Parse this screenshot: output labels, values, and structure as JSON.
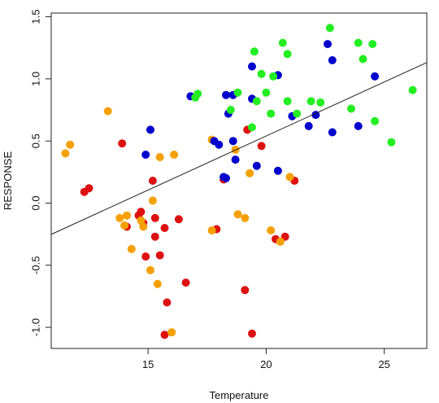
{
  "chart_data": {
    "type": "scatter",
    "xlabel": "Temperature",
    "ylabel": "RESPONSE",
    "xlim": [
      10.9,
      26.8
    ],
    "ylim": [
      -1.17,
      1.53
    ],
    "x_ticks": [
      15,
      20,
      25
    ],
    "y_ticks": [
      -1.0,
      -0.5,
      0.0,
      0.5,
      1.0,
      1.5
    ],
    "x_tick_labels": [
      "15",
      "20",
      "25"
    ],
    "y_tick_labels": [
      "-1.0",
      "-0.5",
      "0.0",
      "0.5",
      "1.0",
      "1.5"
    ],
    "grid": false,
    "legend": "none",
    "trend_line": {
      "intercept": -1.2,
      "slope": 0.087
    },
    "colors": {
      "red": "#dd1111",
      "orange": "#f5a000",
      "blue": "#0000cc",
      "green": "#22ee22",
      "line": "#222222"
    },
    "series": [
      {
        "color": "#dd1111",
        "points": [
          [
            12.3,
            0.09
          ],
          [
            12.5,
            0.12
          ],
          [
            13.9,
            0.48
          ],
          [
            14.1,
            -0.19
          ],
          [
            14.6,
            -0.1
          ],
          [
            14.7,
            -0.07
          ],
          [
            14.8,
            -0.16
          ],
          [
            14.9,
            -0.43
          ],
          [
            15.2,
            0.18
          ],
          [
            15.3,
            -0.12
          ],
          [
            15.3,
            -0.27
          ],
          [
            15.5,
            -0.42
          ],
          [
            15.7,
            -0.2
          ],
          [
            15.7,
            -1.06
          ],
          [
            15.8,
            -0.8
          ],
          [
            16.3,
            -0.13
          ],
          [
            16.6,
            -0.64
          ],
          [
            17.9,
            -0.21
          ],
          [
            18.2,
            0.19
          ],
          [
            19.1,
            -0.7
          ],
          [
            19.2,
            0.59
          ],
          [
            19.4,
            -1.05
          ],
          [
            19.8,
            0.46
          ],
          [
            20.4,
            -0.29
          ],
          [
            20.8,
            -0.27
          ],
          [
            21.2,
            0.18
          ]
        ]
      },
      {
        "color": "#f5a000",
        "points": [
          [
            11.5,
            0.4
          ],
          [
            11.7,
            0.47
          ],
          [
            13.3,
            0.74
          ],
          [
            13.8,
            -0.12
          ],
          [
            14.0,
            -0.18
          ],
          [
            14.1,
            -0.1
          ],
          [
            14.3,
            -0.37
          ],
          [
            14.7,
            -0.14
          ],
          [
            14.8,
            -0.19
          ],
          [
            15.1,
            -0.54
          ],
          [
            15.2,
            0.02
          ],
          [
            15.4,
            -0.65
          ],
          [
            15.5,
            0.37
          ],
          [
            16.0,
            -1.04
          ],
          [
            16.1,
            0.39
          ],
          [
            17.7,
            -0.22
          ],
          [
            17.7,
            0.51
          ],
          [
            18.7,
            0.43
          ],
          [
            18.8,
            -0.09
          ],
          [
            19.1,
            -0.12
          ],
          [
            19.3,
            0.24
          ],
          [
            20.2,
            -0.22
          ],
          [
            20.6,
            -0.31
          ],
          [
            21.0,
            0.21
          ]
        ]
      },
      {
        "color": "#0000cc",
        "points": [
          [
            14.9,
            0.39
          ],
          [
            15.1,
            0.59
          ],
          [
            16.8,
            0.86
          ],
          [
            17.8,
            0.5
          ],
          [
            18.0,
            0.47
          ],
          [
            18.2,
            0.21
          ],
          [
            18.3,
            0.2
          ],
          [
            18.3,
            0.87
          ],
          [
            18.4,
            0.72
          ],
          [
            18.6,
            0.5
          ],
          [
            18.6,
            0.87
          ],
          [
            18.7,
            0.35
          ],
          [
            19.4,
            1.1
          ],
          [
            19.4,
            0.84
          ],
          [
            19.6,
            0.3
          ],
          [
            20.5,
            0.26
          ],
          [
            20.5,
            1.03
          ],
          [
            21.1,
            0.7
          ],
          [
            21.8,
            0.62
          ],
          [
            22.1,
            0.71
          ],
          [
            22.6,
            1.28
          ],
          [
            22.8,
            1.15
          ],
          [
            22.8,
            0.57
          ],
          [
            23.9,
            0.62
          ],
          [
            24.6,
            1.02
          ]
        ]
      },
      {
        "color": "#22ee22",
        "points": [
          [
            17.0,
            0.85
          ],
          [
            17.1,
            0.88
          ],
          [
            18.5,
            0.75
          ],
          [
            18.8,
            0.89
          ],
          [
            19.4,
            0.61
          ],
          [
            19.5,
            1.22
          ],
          [
            19.6,
            0.82
          ],
          [
            19.8,
            1.04
          ],
          [
            20.0,
            0.89
          ],
          [
            20.2,
            0.72
          ],
          [
            20.3,
            1.02
          ],
          [
            20.7,
            1.29
          ],
          [
            20.9,
            1.2
          ],
          [
            20.9,
            0.82
          ],
          [
            21.3,
            0.72
          ],
          [
            21.9,
            0.82
          ],
          [
            22.3,
            0.81
          ],
          [
            22.7,
            1.41
          ],
          [
            23.6,
            0.76
          ],
          [
            23.9,
            1.29
          ],
          [
            24.1,
            1.16
          ],
          [
            24.5,
            1.28
          ],
          [
            24.6,
            0.66
          ],
          [
            25.3,
            0.49
          ],
          [
            26.2,
            0.91
          ]
        ]
      }
    ]
  }
}
